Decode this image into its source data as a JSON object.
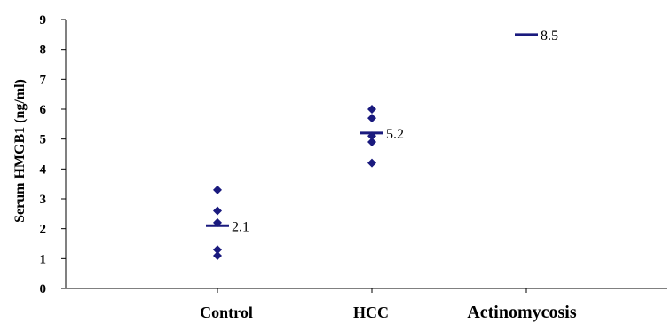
{
  "chart_data": {
    "type": "scatter",
    "ylabel": "Serum HMGB1 (ng/ml)",
    "xlabel": "",
    "ylim": [
      0,
      9
    ],
    "yticks": [
      0,
      1,
      2,
      3,
      4,
      5,
      6,
      7,
      8,
      9
    ],
    "grid": false,
    "categories": [
      "Control",
      "HCC",
      "Actinomycosis"
    ],
    "points": [
      [
        1.1,
        1.3,
        2.2,
        2.6,
        3.3
      ],
      [
        4.2,
        4.9,
        5.1,
        5.7,
        6.0
      ],
      []
    ],
    "means": [
      2.1,
      5.2,
      8.5
    ],
    "mean_labels": [
      "2.1",
      "5.2",
      "8.5"
    ],
    "colors": {
      "marker": "#1a1a7e",
      "axis": "#000000"
    }
  }
}
